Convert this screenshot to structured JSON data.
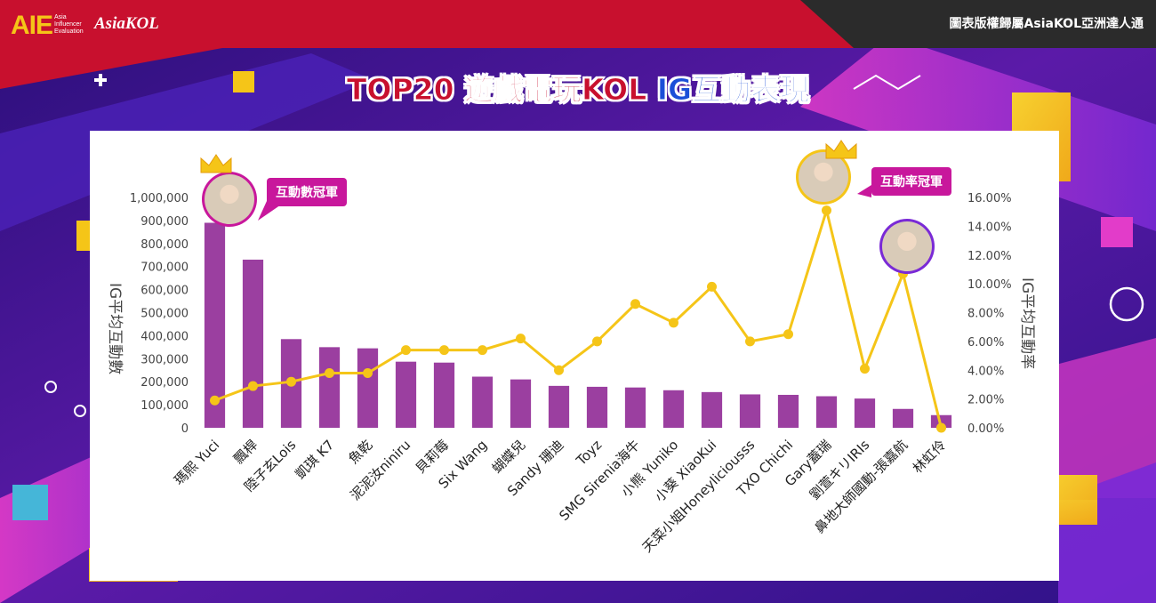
{
  "header": {
    "logo_main": "AIE",
    "logo_sub_1": "Asia",
    "logo_sub_2": "Influencer",
    "logo_sub_3": "Evaluation",
    "logo_brand": "AsiaKOL",
    "copyright": "圖表版權歸屬AsiaKOL亞洲達人通"
  },
  "title": {
    "part1": "TOP20 遊戲電玩KOL ",
    "part2": "IG互動表現"
  },
  "badges": {
    "left": "互動數冠軍",
    "right": "互動率冠軍"
  },
  "colors": {
    "bar": "#9b3fa0",
    "line": "#f5c518",
    "title_red": "#c8102e",
    "title_blue": "#1b4fd8",
    "badge": "#c8179c"
  },
  "chart_data": {
    "type": "bar",
    "categories": [
      "瑪熙 Yuci",
      "飄桿",
      "陸子玄Lois",
      "凱琪 K7",
      "魚乾",
      "泥泥汝niniru",
      "貝莉莓",
      "Six Wang",
      "蝴蝶兒",
      "Sandy 珊迪",
      "Toyz",
      "SMG Sirenia海牛",
      "小熊 Yuniko",
      "小葵 XiaoKui",
      "天菜小姐Honeyliciousss",
      "TXO Chichi",
      "Gary蓋瑞",
      "劉萱キリIRIs",
      "鼻地大師國動-張嘉航",
      "林虹伶"
    ],
    "series": [
      {
        "name": "IG平均互動數",
        "axis": "left",
        "type": "bar",
        "values": [
          890000,
          730000,
          385000,
          350000,
          345000,
          287000,
          283000,
          222000,
          210000,
          182000,
          178000,
          175000,
          163000,
          155000,
          145000,
          143000,
          137000,
          127000,
          82000,
          55000
        ]
      },
      {
        "name": "IG平均互動率",
        "axis": "right",
        "type": "line",
        "values": [
          1.9,
          2.9,
          3.2,
          3.8,
          3.8,
          5.4,
          5.4,
          5.4,
          6.2,
          4.0,
          6.0,
          8.6,
          7.3,
          9.8,
          6.0,
          6.5,
          15.1,
          4.1,
          10.7,
          0.0
        ]
      }
    ],
    "ylabel": "IG平均互動數",
    "y2label": "IG平均互動率",
    "ylim": [
      0,
      1000000
    ],
    "y2lim": [
      0,
      16
    ],
    "yticks": [
      "0",
      "100,000",
      "200,000",
      "300,000",
      "400,000",
      "500,000",
      "600,000",
      "700,000",
      "800,000",
      "900,000",
      "1,000,000"
    ],
    "y2ticks": [
      "0.00%",
      "2.00%",
      "4.00%",
      "6.00%",
      "8.00%",
      "10.00%",
      "12.00%",
      "14.00%",
      "16.00%"
    ],
    "grid": false,
    "legend": "none"
  }
}
